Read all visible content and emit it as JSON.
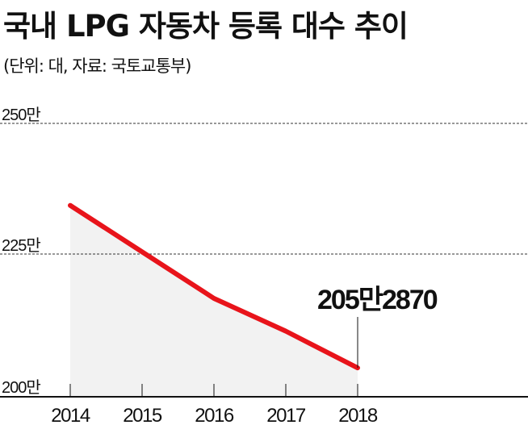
{
  "chart_data": {
    "type": "area",
    "title": "국내 LPG 자동차 등록 대수 추이",
    "subtitle": "(단위: 대, 자료: 국토교통부)",
    "categories": [
      "2014",
      "2015",
      "2016",
      "2017",
      "2018"
    ],
    "values": [
      235.0,
      226.5,
      218.0,
      212.0,
      205.287
    ],
    "value_unit": "만",
    "ylim": [
      200,
      250
    ],
    "yticks": [
      {
        "value": 200,
        "label": "200만"
      },
      {
        "value": 225,
        "label": "225만"
      },
      {
        "value": 250,
        "label": "250만"
      }
    ],
    "grid": true,
    "annotation": {
      "category": "2018",
      "label": "205만2870"
    },
    "colors": {
      "line": "#e8141b",
      "fill": "#f2f2f2",
      "grid": "#333333",
      "axis": "#111111"
    }
  }
}
